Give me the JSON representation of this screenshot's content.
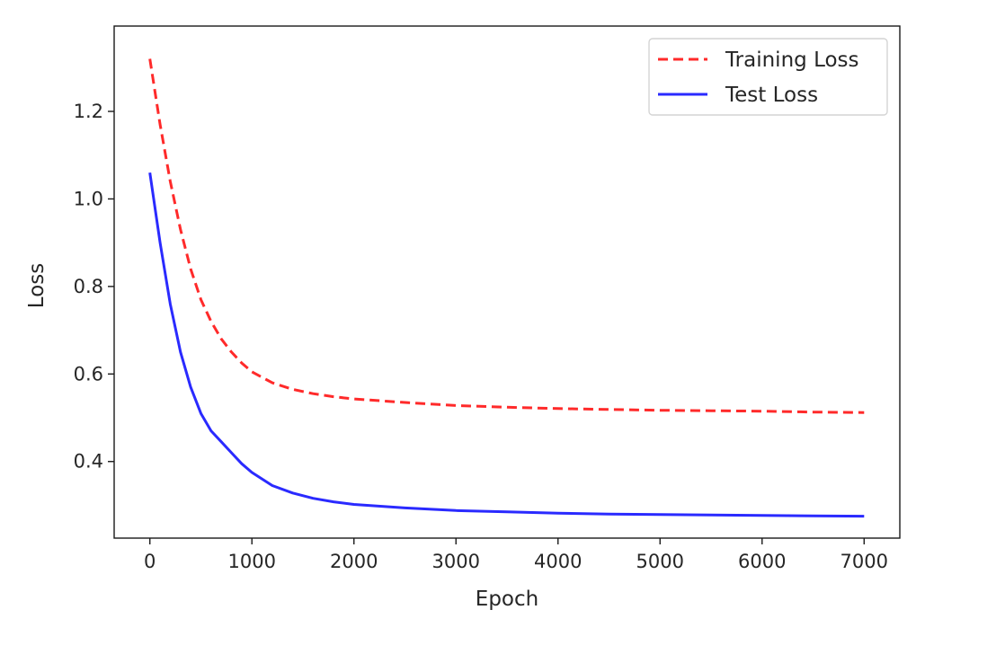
{
  "chart_data": {
    "type": "line",
    "title": "",
    "xlabel": "Epoch",
    "ylabel": "Loss",
    "xlim": [
      -350,
      7350
    ],
    "ylim": [
      0.225,
      1.395
    ],
    "xticks": [
      0,
      1000,
      2000,
      3000,
      4000,
      5000,
      6000,
      7000
    ],
    "xtick_labels": [
      "0",
      "1000",
      "2000",
      "3000",
      "4000",
      "5000",
      "6000",
      "7000"
    ],
    "yticks": [
      0.4,
      0.6,
      0.8,
      1.0,
      1.2
    ],
    "ytick_labels": [
      "0.4",
      "0.6",
      "0.8",
      "1.0",
      "1.2"
    ],
    "grid": false,
    "legend_position": "top-right",
    "series": [
      {
        "name": "Training Loss",
        "color": "#ff2a2a",
        "line_style": "dashed",
        "x": [
          0,
          100,
          200,
          300,
          400,
          500,
          600,
          700,
          800,
          900,
          1000,
          1200,
          1400,
          1600,
          1800,
          2000,
          2500,
          3000,
          3500,
          4000,
          4500,
          5000,
          5500,
          6000,
          6500,
          7000
        ],
        "y": [
          1.32,
          1.17,
          1.04,
          0.93,
          0.84,
          0.77,
          0.72,
          0.68,
          0.65,
          0.625,
          0.605,
          0.58,
          0.565,
          0.555,
          0.548,
          0.543,
          0.535,
          0.528,
          0.524,
          0.521,
          0.519,
          0.517,
          0.516,
          0.515,
          0.513,
          0.512
        ]
      },
      {
        "name": "Test Loss",
        "color": "#2a2aff",
        "line_style": "solid",
        "x": [
          0,
          100,
          200,
          300,
          400,
          500,
          600,
          700,
          800,
          900,
          1000,
          1200,
          1400,
          1600,
          1800,
          2000,
          2500,
          3000,
          3500,
          4000,
          4500,
          5000,
          5500,
          6000,
          6500,
          7000
        ],
        "y": [
          1.06,
          0.9,
          0.76,
          0.65,
          0.57,
          0.51,
          0.47,
          0.445,
          0.42,
          0.395,
          0.375,
          0.345,
          0.328,
          0.316,
          0.308,
          0.302,
          0.294,
          0.288,
          0.285,
          0.282,
          0.28,
          0.279,
          0.278,
          0.277,
          0.276,
          0.275
        ]
      }
    ]
  }
}
